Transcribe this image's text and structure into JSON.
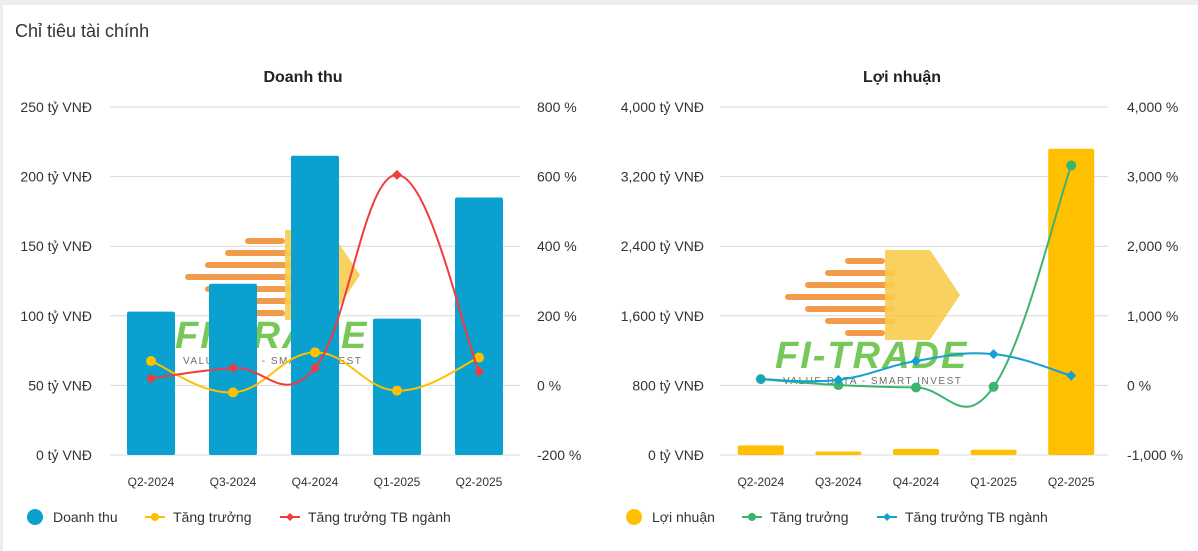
{
  "page": {
    "title": "Chỉ tiêu tài chính"
  },
  "watermark": {
    "brand": "FI-TRADE",
    "tagline": "VALUE DATA - SMART INVEST"
  },
  "colors": {
    "revenue_bar": "#0aa0d0",
    "profit_bar": "#ffc000",
    "revenue_growth": "#ffc000",
    "revenue_industry": "#f03c3c",
    "profit_growth": "#3cb46e",
    "profit_industry": "#14a0d2",
    "grid": "#d9d9d9"
  },
  "chart_data": [
    {
      "type": "bar",
      "title": "Doanh thu",
      "categories": [
        "Q2-2024",
        "Q3-2024",
        "Q4-2024",
        "Q1-2025",
        "Q2-2025"
      ],
      "left_axis": {
        "ylim": [
          0,
          250
        ],
        "ticks": [
          0,
          50,
          100,
          150,
          200,
          250
        ],
        "tick_labels": [
          "0 tỷ VNĐ",
          "50 tỷ VNĐ",
          "100 tỷ VNĐ",
          "150 tỷ VNĐ",
          "200 tỷ VNĐ",
          "250 tỷ VNĐ"
        ]
      },
      "right_axis": {
        "ylim": [
          -200,
          800
        ],
        "ticks": [
          -200,
          0,
          200,
          400,
          600,
          800
        ],
        "tick_labels": [
          "-200 %",
          "0 %",
          "200 %",
          "400 %",
          "600 %",
          "800 %"
        ]
      },
      "series": [
        {
          "name": "Doanh thu",
          "kind": "bar",
          "axis": "left",
          "color": "#0aa0d0",
          "values": [
            103,
            123,
            215,
            98,
            185
          ]
        },
        {
          "name": "Tăng trưởng",
          "kind": "line",
          "axis": "right",
          "color": "#ffc000",
          "marker": "circle",
          "values": [
            70,
            -20,
            95,
            -15,
            80
          ]
        },
        {
          "name": "Tăng trưởng TB ngành",
          "kind": "line",
          "axis": "right",
          "color": "#f03c3c",
          "marker": "diamond",
          "values": [
            20,
            50,
            50,
            605,
            40
          ]
        }
      ],
      "legend": "bottom-left",
      "grid": true
    },
    {
      "type": "bar",
      "title": "Lợi nhuận",
      "categories": [
        "Q2-2024",
        "Q3-2024",
        "Q4-2024",
        "Q1-2025",
        "Q2-2025"
      ],
      "left_axis": {
        "ylim": [
          0,
          4000
        ],
        "ticks": [
          0,
          800,
          1600,
          2400,
          3200,
          4000
        ],
        "tick_labels": [
          "0 tỷ VNĐ",
          "800 tỷ VNĐ",
          "1,600 tỷ VNĐ",
          "2,400 tỷ VNĐ",
          "3,200 tỷ VNĐ",
          "4,000 tỷ VNĐ"
        ]
      },
      "right_axis": {
        "ylim": [
          -1000,
          4000
        ],
        "ticks": [
          -1000,
          0,
          1000,
          2000,
          3000,
          4000
        ],
        "tick_labels": [
          "-1,000 %",
          "0 %",
          "1,000 %",
          "2,000 %",
          "3,000 %",
          "4,000 %"
        ]
      },
      "series": [
        {
          "name": "Lợi nhuận",
          "kind": "bar",
          "axis": "left",
          "color": "#ffc000",
          "values": [
            110,
            40,
            70,
            60,
            3520
          ]
        },
        {
          "name": "Tăng trưởng",
          "kind": "line",
          "axis": "right",
          "color": "#3cb46e",
          "marker": "circle",
          "values": [
            90,
            5,
            -30,
            -20,
            3160
          ]
        },
        {
          "name": "Tăng trưởng TB ngành",
          "kind": "line",
          "axis": "right",
          "color": "#14a0d2",
          "marker": "diamond",
          "values": [
            90,
            80,
            350,
            450,
            140
          ]
        }
      ],
      "legend": "bottom-left",
      "grid": true
    }
  ]
}
